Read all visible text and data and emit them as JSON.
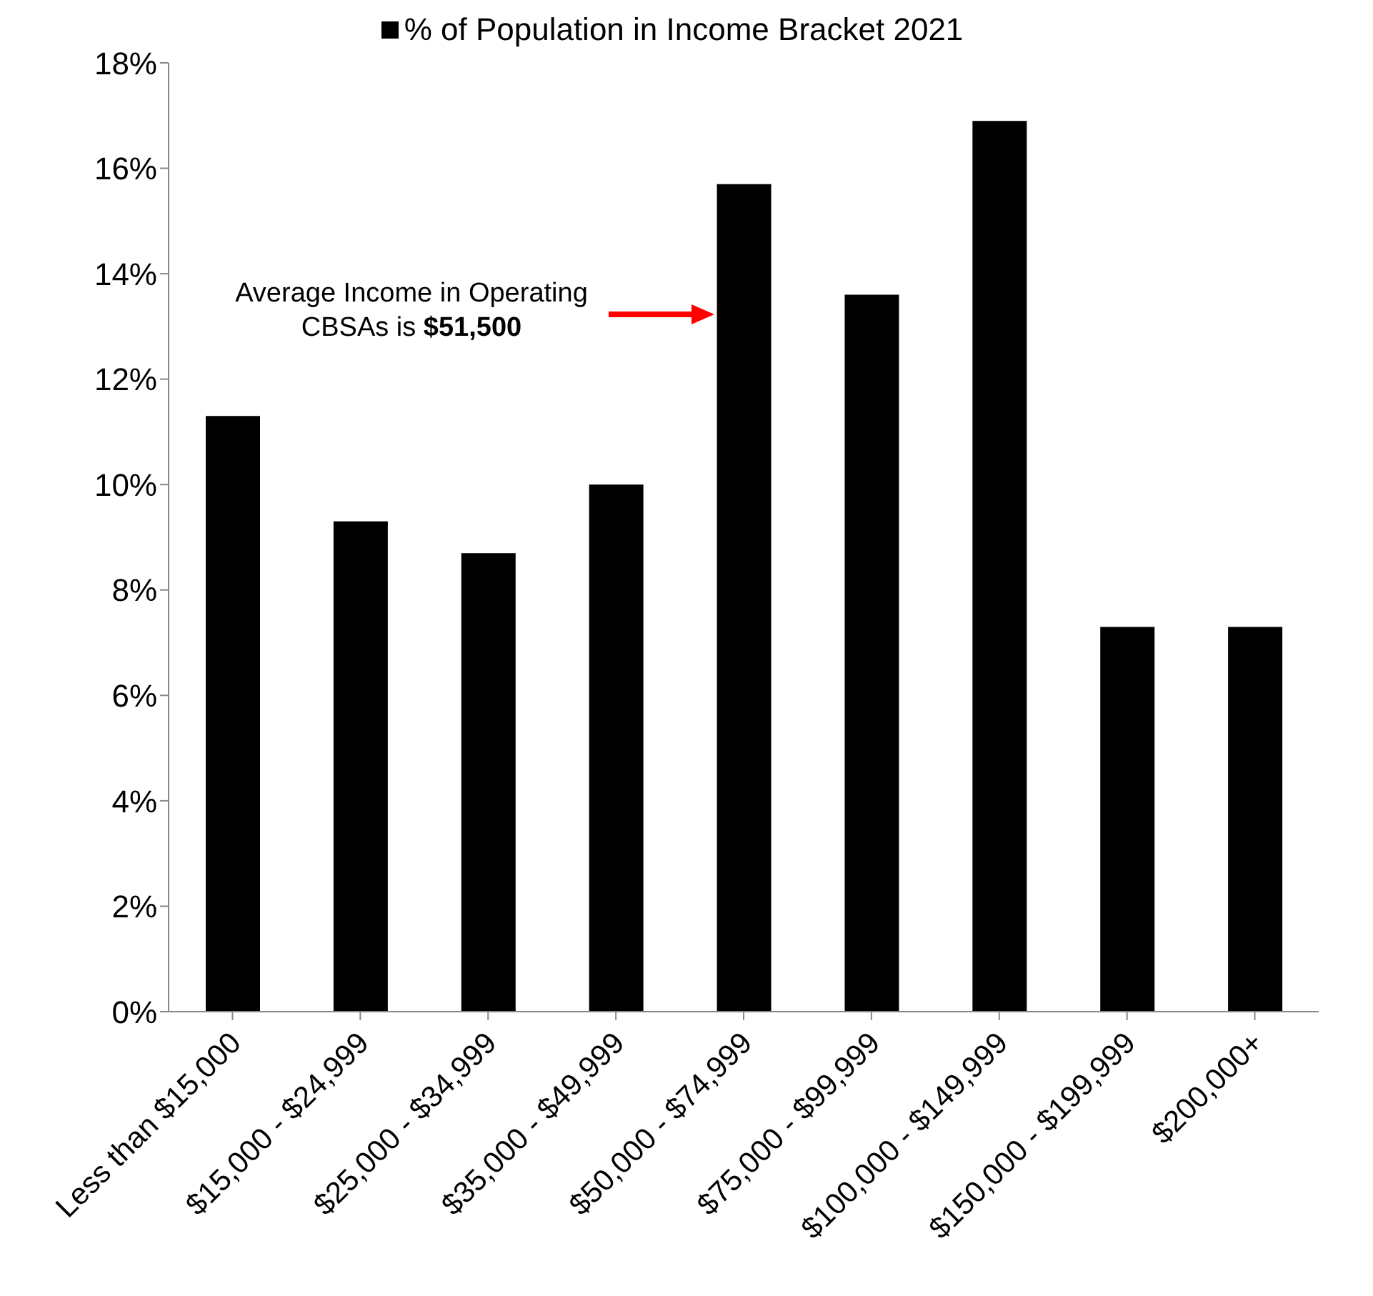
{
  "chart_data": {
    "type": "bar",
    "categories": [
      "Less than $15,000",
      "$15,000 - $24,999",
      "$25,000 - $34,999",
      "$35,000 - $49,999",
      "$50,000 - $74,999",
      "$75,000 - $99,999",
      "$100,000 - $149,999",
      "$150,000 - $199,999",
      "$200,000+"
    ],
    "series": [
      {
        "name": "% of Population in Income Bracket 2021",
        "color": "#000000",
        "values": [
          11.3,
          9.3,
          8.7,
          10.0,
          15.7,
          13.6,
          16.9,
          7.3,
          7.3
        ]
      }
    ],
    "ylim": [
      0,
      18
    ],
    "yticks": [
      {
        "value": 0,
        "label": "0%"
      },
      {
        "value": 2,
        "label": "2%"
      },
      {
        "value": 4,
        "label": "4%"
      },
      {
        "value": 6,
        "label": "6%"
      },
      {
        "value": 8,
        "label": "8%"
      },
      {
        "value": 10,
        "label": "10%"
      },
      {
        "value": 12,
        "label": "12%"
      },
      {
        "value": 14,
        "label": "14%"
      },
      {
        "value": 16,
        "label": "16%"
      },
      {
        "value": 18,
        "label": "18%"
      }
    ],
    "annotations": [
      "Average Income in Operating CBSAs is $51,500"
    ],
    "legend": "top",
    "grid": false
  }
}
